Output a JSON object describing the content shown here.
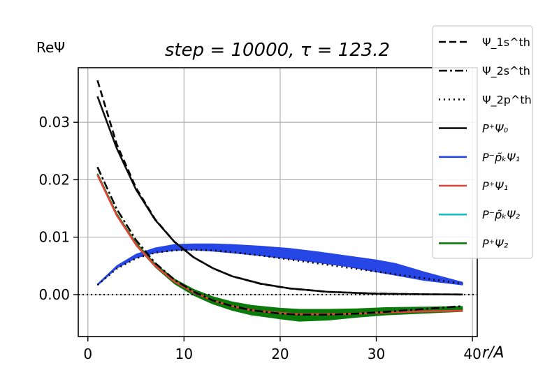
{
  "chart_data": {
    "type": "line",
    "title": "step = 10000, τ = 123.2",
    "ylabel": "ReΨ",
    "xlabel": "r/A",
    "xlim": [
      -1,
      40.5
    ],
    "ylim": [
      -0.0073,
      0.0395
    ],
    "xticks": [
      0,
      10,
      20,
      30,
      40
    ],
    "yticks": [
      0.0,
      0.01,
      0.02,
      0.03
    ],
    "ytick_labels": [
      "0.00",
      "0.01",
      "0.02",
      "0.03"
    ],
    "grid": true,
    "legend_position": "upper-right, outside",
    "colors": {
      "psi1s": "#000000",
      "psi2s": "#000000",
      "psi2p": "#000000",
      "P0": "#111111",
      "Ppk1": "#2746e6",
      "P1": "#e8413c",
      "Ppk2": "#18bfbf",
      "P2": "#0a7a0a"
    },
    "series": [
      {
        "key": "psi1s",
        "name": "Ψ_1s^th",
        "style": "dashed",
        "x": [
          1,
          3,
          5,
          7,
          9,
          11,
          13,
          15,
          18,
          21,
          25,
          30,
          35,
          39
        ],
        "y": [
          0.0373,
          0.0262,
          0.0186,
          0.0131,
          0.0092,
          0.0065,
          0.0046,
          0.0032,
          0.00185,
          0.00106,
          0.00048,
          0.00017,
          6e-05,
          2e-05
        ]
      },
      {
        "key": "psi2s",
        "name": "Ψ_2s^th",
        "style": "dashdot",
        "x": [
          1,
          3,
          5,
          7,
          9,
          11,
          13,
          15,
          17,
          20,
          22,
          25,
          28,
          31,
          35,
          39
        ],
        "y": [
          0.0222,
          0.0149,
          0.0095,
          0.0055,
          0.0026,
          0.0005,
          -0.001,
          -0.002,
          -0.0027,
          -0.0033,
          -0.0035,
          -0.0035,
          -0.0033,
          -0.003,
          -0.0025,
          -0.002
        ]
      },
      {
        "key": "psi2p",
        "name": "Ψ_2p^th",
        "style": "dotted",
        "x": [
          1,
          3,
          5,
          7,
          9,
          11,
          13,
          15,
          18,
          21,
          24,
          27,
          30,
          33,
          36,
          39
        ],
        "y": [
          0.0017,
          0.0045,
          0.0063,
          0.0073,
          0.0077,
          0.0078,
          0.0077,
          0.0074,
          0.0068,
          0.0061,
          0.0054,
          0.0047,
          0.004,
          0.0033,
          0.0026,
          0.0019
        ]
      },
      {
        "key": "P0",
        "name": "P⁺Ψ₀",
        "style": "solid",
        "x": [
          1,
          3,
          5,
          7,
          9,
          11,
          13,
          15,
          18,
          21,
          25,
          30,
          35,
          39
        ],
        "y": [
          0.0345,
          0.0255,
          0.0183,
          0.013,
          0.0092,
          0.0065,
          0.0046,
          0.0032,
          0.0019,
          0.00108,
          0.00048,
          0.00016,
          5e-05,
          2e-05
        ]
      },
      {
        "key": "Ppk1",
        "name": "P⁻p̃ₖΨ₁",
        "style": "band",
        "x": [
          1,
          3,
          5,
          7,
          9,
          11,
          13,
          15,
          18,
          21,
          24,
          27,
          30,
          32,
          35,
          39
        ],
        "y": [
          0.0017,
          0.0048,
          0.0067,
          0.0077,
          0.0082,
          0.0083,
          0.0082,
          0.008,
          0.0076,
          0.0071,
          0.0065,
          0.0058,
          0.005,
          0.0044,
          0.0032,
          0.0019
        ],
        "band": [
          0.0002,
          0.0003,
          0.0004,
          0.0005,
          0.0006,
          0.0006,
          0.0007,
          0.0008,
          0.0009,
          0.001,
          0.001,
          0.001,
          0.0011,
          0.0011,
          0.0008,
          0.0003
        ]
      },
      {
        "key": "P1",
        "name": "P⁺Ψ₁",
        "style": "solid",
        "x": [
          1,
          3,
          5,
          7,
          9,
          11,
          13,
          15,
          17,
          20,
          22,
          25,
          28,
          31,
          35,
          39
        ],
        "y": [
          0.0208,
          0.0138,
          0.0087,
          0.005,
          0.0023,
          0.0004,
          -0.001,
          -0.002,
          -0.0027,
          -0.0032,
          -0.0034,
          -0.0034,
          -0.0033,
          -0.0031,
          -0.0029,
          -0.0028
        ]
      },
      {
        "key": "Ppk2",
        "name": "P⁻p̃ₖΨ₂",
        "style": "solid",
        "x": [],
        "y": []
      },
      {
        "key": "P2",
        "name": "P⁺Ψ₂",
        "style": "band",
        "x": [
          1,
          3,
          5,
          7,
          9,
          11,
          13,
          15,
          17,
          20,
          22,
          25,
          28,
          31,
          35,
          39
        ],
        "y": [
          0.021,
          0.014,
          0.0088,
          0.0051,
          0.0023,
          0.0004,
          -0.001,
          -0.002,
          -0.0027,
          -0.0033,
          -0.0036,
          -0.0035,
          -0.0032,
          -0.0029,
          -0.0027,
          -0.0025
        ],
        "band": [
          0.0002,
          0.0003,
          0.0004,
          0.0004,
          0.0005,
          0.0006,
          0.0007,
          0.0008,
          0.0009,
          0.001,
          0.0011,
          0.001,
          0.0008,
          0.0007,
          0.0006,
          0.0005
        ]
      }
    ]
  }
}
